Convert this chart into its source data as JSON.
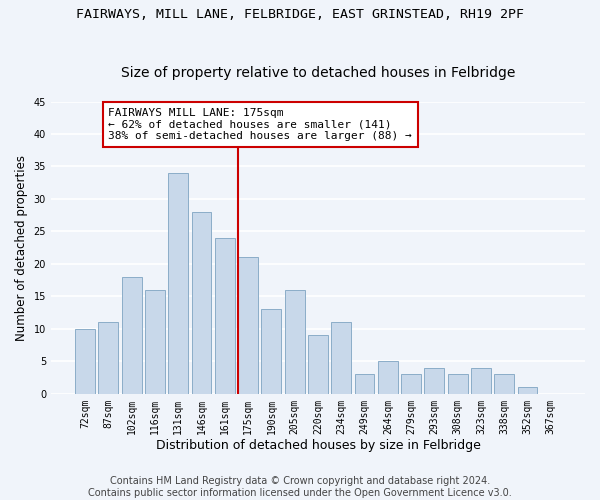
{
  "title1": "FAIRWAYS, MILL LANE, FELBRIDGE, EAST GRINSTEAD, RH19 2PF",
  "title2": "Size of property relative to detached houses in Felbridge",
  "xlabel": "Distribution of detached houses by size in Felbridge",
  "ylabel": "Number of detached properties",
  "categories": [
    "72sqm",
    "87sqm",
    "102sqm",
    "116sqm",
    "131sqm",
    "146sqm",
    "161sqm",
    "175sqm",
    "190sqm",
    "205sqm",
    "220sqm",
    "234sqm",
    "249sqm",
    "264sqm",
    "279sqm",
    "293sqm",
    "308sqm",
    "323sqm",
    "338sqm",
    "352sqm",
    "367sqm"
  ],
  "values": [
    10,
    11,
    18,
    16,
    34,
    28,
    24,
    21,
    13,
    16,
    9,
    11,
    3,
    5,
    3,
    4,
    3,
    4,
    3,
    1,
    0
  ],
  "bar_color": "#c8d8ea",
  "bar_edge_color": "#8badc8",
  "highlight_index": 7,
  "vline_color": "#cc0000",
  "annotation_line1": "FAIRWAYS MILL LANE: 175sqm",
  "annotation_line2": "← 62% of detached houses are smaller (141)",
  "annotation_line3": "38% of semi-detached houses are larger (88) →",
  "annotation_box_color": "#ffffff",
  "annotation_box_edge_color": "#cc0000",
  "ylim": [
    0,
    45
  ],
  "yticks": [
    0,
    5,
    10,
    15,
    20,
    25,
    30,
    35,
    40,
    45
  ],
  "footer": "Contains HM Land Registry data © Crown copyright and database right 2024.\nContains public sector information licensed under the Open Government Licence v3.0.",
  "bg_color": "#f0f4fa",
  "plot_bg_color": "#f0f4fa",
  "grid_color": "#ffffff",
  "title1_fontsize": 9.5,
  "title2_fontsize": 10,
  "xlabel_fontsize": 9,
  "ylabel_fontsize": 8.5,
  "tick_fontsize": 7,
  "footer_fontsize": 7,
  "annotation_fontsize": 8
}
